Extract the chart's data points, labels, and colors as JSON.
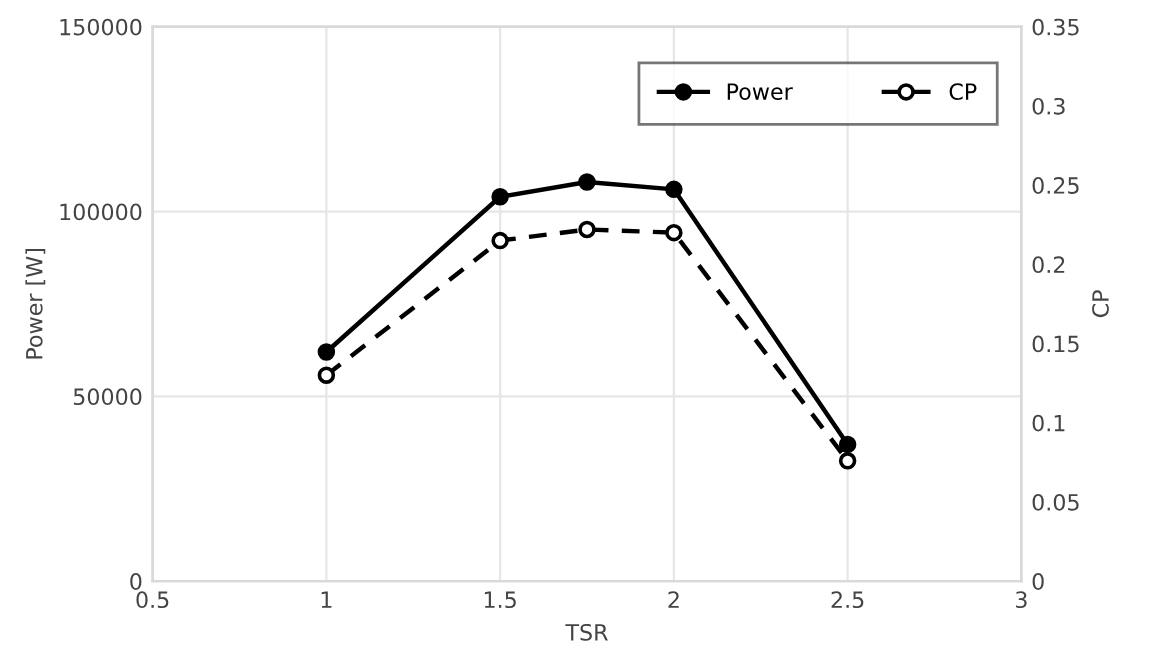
{
  "chart_data": {
    "type": "line",
    "xlabel": "TSR",
    "ylabel": "Power [W]",
    "y2label": "CP",
    "x": [
      1,
      1.5,
      1.75,
      2,
      2.5
    ],
    "series": [
      {
        "name": "Power",
        "color": "#000000",
        "values": [
          62000,
          104000,
          108000,
          106000,
          37000
        ],
        "marker": "circle",
        "line_style": "solid"
      },
      {
        "name": "CP",
        "color": "#000000",
        "values": [
          0.13,
          0.215,
          0.222,
          0.22,
          0.076
        ],
        "marker": "circle",
        "line_style": "dashed",
        "axis": "y2"
      }
    ],
    "xlim": [
      0.5,
      3
    ],
    "xticks": [
      0.5,
      1,
      1.5,
      2,
      2.5,
      3
    ],
    "ylim": [
      0,
      150000
    ],
    "yticks": [
      0,
      50000,
      100000,
      150000
    ],
    "y2lim": [
      0,
      0.35
    ],
    "y2ticks": [
      0,
      0.05,
      0.1,
      0.15,
      0.2,
      0.25,
      0.3,
      0.35
    ],
    "grid": true,
    "legend": "top right"
  }
}
